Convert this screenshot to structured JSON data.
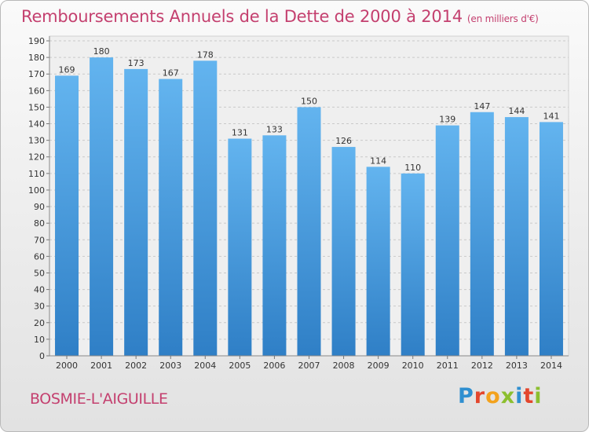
{
  "chart_data": {
    "type": "bar",
    "title": "Remboursements Annuels de la Dette de 2000 à 2014",
    "unit": "(en milliers d'€)",
    "xlabel": "",
    "ylabel": "",
    "ylim": [
      0,
      190
    ],
    "ytick_step": 10,
    "grid": true,
    "categories": [
      "2000",
      "2001",
      "2002",
      "2003",
      "2004",
      "2005",
      "2006",
      "2007",
      "2008",
      "2009",
      "2010",
      "2011",
      "2012",
      "2013",
      "2014"
    ],
    "values": [
      169,
      180,
      173,
      167,
      178,
      131,
      133,
      150,
      126,
      114,
      110,
      139,
      147,
      144,
      141
    ],
    "bar_color": "#5aacea",
    "accent_color": "#c4406f"
  },
  "commune": "BOSMIE-L'AIGUILLE",
  "logo_text": "Proxiti"
}
